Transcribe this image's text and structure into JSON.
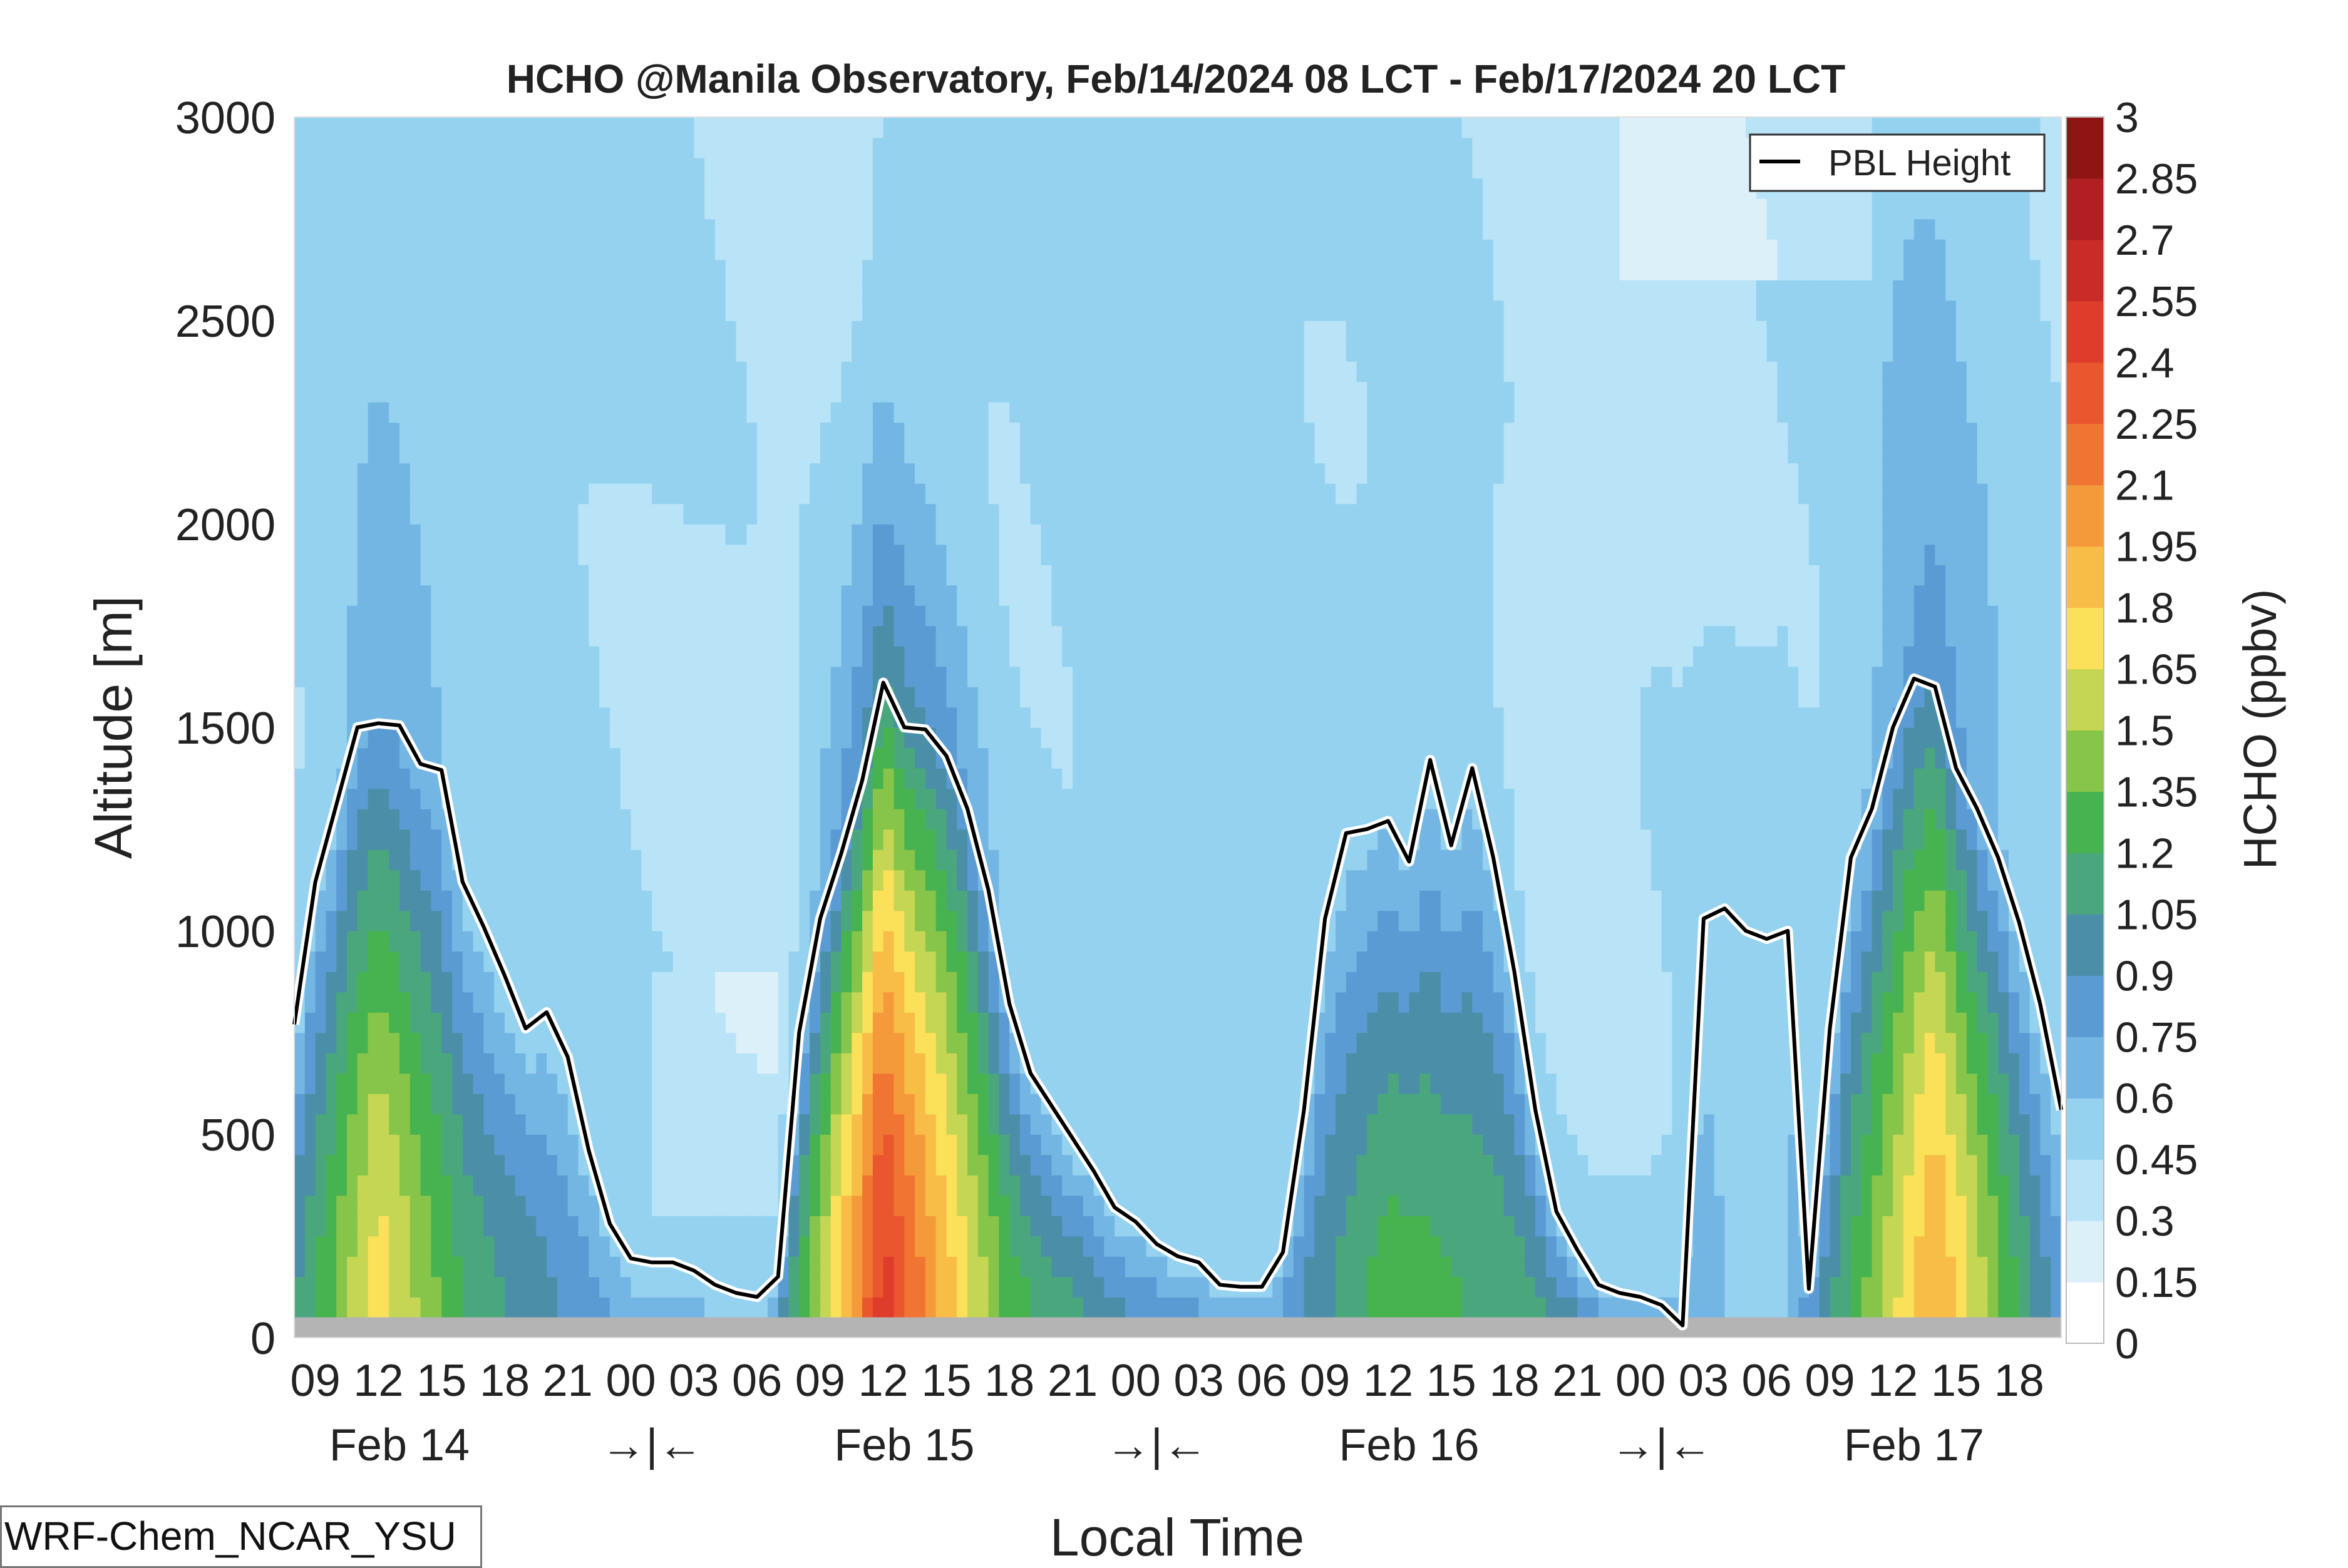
{
  "chart_data": {
    "type": "heatmap",
    "title": "HCHO @Manila Observatory, Feb/14/2024 08 LCT - Feb/17/2024 20 LCT",
    "xlabel": "Local Time",
    "ylabel": "Altitude [m]",
    "ylim": [
      0,
      3000
    ],
    "yticks": [
      "0",
      "500",
      "1000",
      "1500",
      "2000",
      "2500",
      "3000"
    ],
    "hour_ticks": [
      "09",
      "12",
      "15",
      "18",
      "21",
      "00",
      "03",
      "06",
      "09",
      "12",
      "15",
      "18",
      "21",
      "00",
      "03",
      "06",
      "09",
      "12",
      "15",
      "18",
      "21",
      "00",
      "03",
      "06",
      "09",
      "12",
      "15",
      "18"
    ],
    "day_labels": [
      "Feb 14",
      "→|←",
      "Feb 15",
      "→|←",
      "Feb 16",
      "→|←",
      "Feb 17"
    ],
    "colorbar": {
      "label": "HCHO (ppbv)",
      "range": [
        0,
        3
      ],
      "ticks": [
        "0",
        "0.15",
        "0.3",
        "0.45",
        "0.6",
        "0.75",
        "0.9",
        "1.05",
        "1.2",
        "1.35",
        "1.5",
        "1.65",
        "1.8",
        "1.95",
        "2.1",
        "2.25",
        "2.4",
        "2.55",
        "2.7",
        "2.85",
        "3"
      ],
      "colors": [
        "#ffffff",
        "#dcf0fa",
        "#b9e3f6",
        "#95d2f0",
        "#74b6e3",
        "#5b9bd4",
        "#4a8fa7",
        "#4aa77d",
        "#47b350",
        "#86c54a",
        "#c4d653",
        "#fbe05a",
        "#f8bd47",
        "#f59a3b",
        "#f17532",
        "#ea562e",
        "#de3d2c",
        "#c92b28",
        "#b11f22",
        "#8f1515"
      ]
    },
    "legend": {
      "entries": [
        "PBL Height"
      ],
      "position": "top-right"
    },
    "surface_band_m": [
      0,
      50
    ],
    "pbl_height": {
      "name": "PBL Height",
      "hours": [
        0,
        1,
        2,
        3,
        4,
        5,
        6,
        7,
        8,
        9,
        10,
        11,
        12,
        13,
        14,
        15,
        16,
        17,
        18,
        19,
        20,
        21,
        22,
        23,
        24,
        25,
        26,
        27,
        28,
        29,
        30,
        31,
        32,
        33,
        34,
        35,
        36,
        37,
        38,
        39,
        40,
        41,
        42,
        43,
        44,
        45,
        46,
        47,
        48,
        49,
        50,
        51,
        52,
        53,
        54,
        55,
        56,
        57,
        58,
        59,
        60,
        61,
        62,
        63,
        64,
        65,
        66,
        67,
        68,
        69,
        70,
        71,
        72,
        73,
        74,
        75,
        76,
        77,
        78,
        79,
        80,
        81,
        82,
        83,
        84
      ],
      "values": [
        770,
        1120,
        1310,
        1500,
        1510,
        1505,
        1410,
        1395,
        1120,
        1010,
        890,
        760,
        800,
        690,
        460,
        280,
        195,
        185,
        185,
        165,
        130,
        110,
        100,
        150,
        750,
        1030,
        1190,
        1370,
        1610,
        1500,
        1495,
        1430,
        1300,
        1100,
        820,
        650,
        570,
        490,
        410,
        320,
        285,
        230,
        200,
        185,
        130,
        125,
        125,
        210,
        560,
        1030,
        1240,
        1250,
        1270,
        1170,
        1420,
        1210,
        1400,
        1180,
        900,
        560,
        310,
        215,
        130,
        110,
        100,
        80,
        30,
        1030,
        1055,
        1000,
        980,
        1000,
        120,
        760,
        1180,
        1300,
        1500,
        1620,
        1600,
        1400,
        1300,
        1180,
        1020,
        820,
        560
      ]
    },
    "concentration_field_ppbv": [
      {
        "hour": 0,
        "surface": 0.9,
        "max": 1.05,
        "max_alt": 200
      },
      {
        "hour": 4,
        "surface": 1.7,
        "max": 1.75,
        "max_alt": 150
      },
      {
        "hour": 8,
        "surface": 1.2,
        "max": 1.2,
        "max_alt": 200
      },
      {
        "hour": 16,
        "surface": 0.7,
        "max": 0.7,
        "max_alt": 100
      },
      {
        "hour": 22,
        "surface": 0.6,
        "max": 0.6,
        "max_alt": 100
      },
      {
        "hour": 28,
        "surface": 2.45,
        "max": 2.5,
        "max_alt": 120
      },
      {
        "hour": 34,
        "surface": 1.3,
        "max": 1.3,
        "max_alt": 100
      },
      {
        "hour": 40,
        "surface": 0.9,
        "max": 0.9,
        "max_alt": 100
      },
      {
        "hour": 46,
        "surface": 0.75,
        "max": 0.75,
        "max_alt": 100
      },
      {
        "hour": 52,
        "surface": 1.3,
        "max": 1.3,
        "max_alt": 400
      },
      {
        "hour": 58,
        "surface": 1.15,
        "max": 1.15,
        "max_alt": 300
      },
      {
        "hour": 66,
        "surface": 0.75,
        "max": 0.75,
        "max_alt": 50
      },
      {
        "hour": 70,
        "surface": 0.45,
        "max": 0.45,
        "max_alt": 100
      },
      {
        "hour": 78,
        "surface": 2.0,
        "max": 2.0,
        "max_alt": 150
      },
      {
        "hour": 84,
        "surface": 0.8,
        "max": 0.8,
        "max_alt": 100
      }
    ]
  },
  "footer": {
    "model": "WRF-Chem_NCAR_YSU"
  }
}
